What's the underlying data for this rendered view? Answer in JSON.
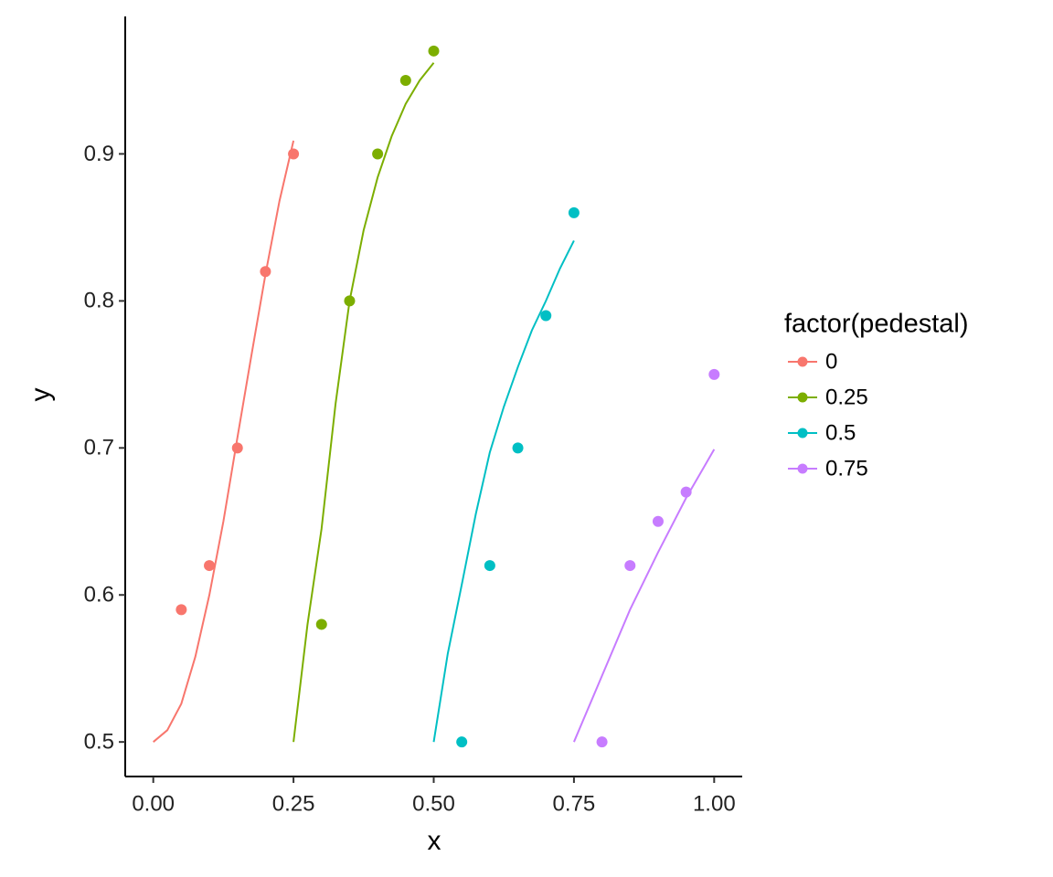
{
  "chart_data": {
    "type": "scatter",
    "x_label": "x",
    "y_label": "y",
    "legend_title": "factor(pedestal)",
    "xlim": [
      -0.05,
      1.05
    ],
    "ylim": [
      0.4765,
      0.9935
    ],
    "xticks": [
      {
        "value": 0,
        "label": "0.00"
      },
      {
        "value": 0.25,
        "label": "0.25"
      },
      {
        "value": 0.5,
        "label": "0.50"
      },
      {
        "value": 0.75,
        "label": "0.75"
      },
      {
        "value": 1,
        "label": "1.00"
      }
    ],
    "yticks": [
      0.5,
      0.6,
      0.7,
      0.8,
      0.9
    ],
    "grid": false,
    "legend": "right",
    "series": [
      {
        "name": "0",
        "color": "#F8766D",
        "x": [
          0.05,
          0.1,
          0.15,
          0.2,
          0.25
        ],
        "values": [
          0.59,
          0.62,
          0.7,
          0.82,
          0.9
        ],
        "fit_x": [
          0,
          0.025,
          0.05,
          0.075,
          0.1,
          0.125,
          0.15,
          0.175,
          0.2,
          0.225,
          0.25
        ],
        "fit_values": [
          0.5,
          0.508,
          0.526,
          0.558,
          0.6,
          0.65,
          0.707,
          0.763,
          0.818,
          0.868,
          0.909
        ]
      },
      {
        "name": "0.25",
        "color": "#7CAE00",
        "x": [
          0.3,
          0.35,
          0.4,
          0.45,
          0.5
        ],
        "values": [
          0.58,
          0.8,
          0.9,
          0.95,
          0.97
        ],
        "fit_x": [
          0.25,
          0.275,
          0.3,
          0.325,
          0.35,
          0.375,
          0.4,
          0.425,
          0.45,
          0.475,
          0.5
        ],
        "fit_values": [
          0.5,
          0.58,
          0.645,
          0.73,
          0.8,
          0.848,
          0.884,
          0.912,
          0.934,
          0.95,
          0.962
        ]
      },
      {
        "name": "0.5",
        "color": "#00BFC4",
        "x": [
          0.55,
          0.6,
          0.65,
          0.7,
          0.75
        ],
        "values": [
          0.5,
          0.62,
          0.7,
          0.79,
          0.86
        ],
        "fit_x": [
          0.5,
          0.525,
          0.55,
          0.575,
          0.6,
          0.625,
          0.65,
          0.675,
          0.7,
          0.725,
          0.75
        ],
        "fit_values": [
          0.5,
          0.56,
          0.607,
          0.655,
          0.697,
          0.728,
          0.755,
          0.78,
          0.8,
          0.822,
          0.841
        ]
      },
      {
        "name": "0.75",
        "color": "#C77CFF",
        "x": [
          0.8,
          0.85,
          0.9,
          0.95,
          1
        ],
        "values": [
          0.5,
          0.62,
          0.65,
          0.67,
          0.75
        ],
        "fit_x": [
          0.75,
          0.8,
          0.85,
          0.9,
          0.95,
          1
        ],
        "fit_values": [
          0.5,
          0.545,
          0.59,
          0.629,
          0.666,
          0.699
        ]
      }
    ]
  }
}
